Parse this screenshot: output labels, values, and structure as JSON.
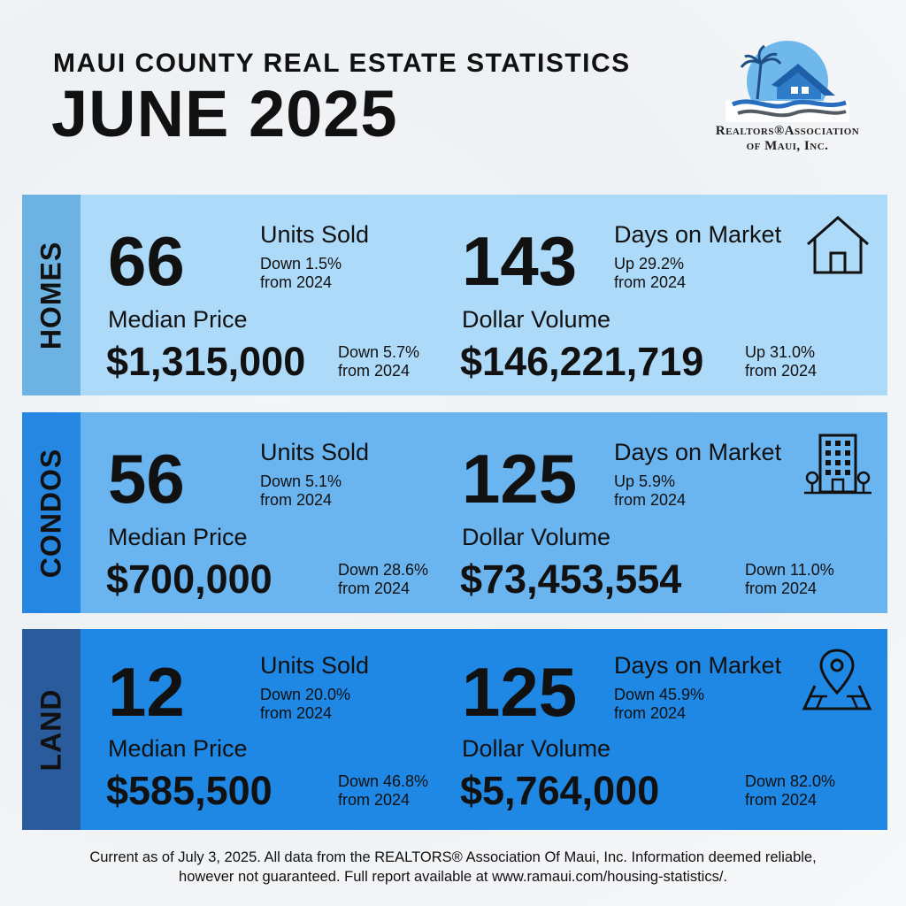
{
  "header": {
    "subtitle": "MAUI COUNTY REAL ESTATE STATISTICS",
    "title": "JUNE 2025"
  },
  "logo": {
    "line1": "Realtors®Association",
    "line2": "of Maui, Inc."
  },
  "labels": {
    "units_sold": "Units Sold",
    "days_on_market": "Days on Market",
    "median_price": "Median Price",
    "dollar_volume": "Dollar Volume",
    "from_2024": "from 2024"
  },
  "sections": [
    {
      "name": "HOMES",
      "icon": "house-icon",
      "units_sold": "66",
      "units_change": "Down 1.5%",
      "days_on_market": "143",
      "days_change": "Up 29.2%",
      "median_price": "$1,315,000",
      "median_change": "Down 5.7%",
      "dollar_volume": "$146,221,719",
      "volume_change": "Up 31.0%"
    },
    {
      "name": "CONDOS",
      "icon": "building-icon",
      "units_sold": "56",
      "units_change": "Down 5.1%",
      "days_on_market": "125",
      "days_change": "Up 5.9%",
      "median_price": "$700,000",
      "median_change": "Down 28.6%",
      "dollar_volume": "$73,453,554",
      "volume_change": "Down 11.0%"
    },
    {
      "name": "LAND",
      "icon": "map-pin-icon",
      "units_sold": "12",
      "units_change": "Down 20.0%",
      "days_on_market": "125",
      "days_change": "Down 45.9%",
      "median_price": "$585,500",
      "median_change": "Down 46.8%",
      "dollar_volume": "$5,764,000",
      "volume_change": "Down 82.0%"
    }
  ],
  "footer": {
    "line1": "Current as of July 3, 2025. All data from the REALTORS® Association Of Maui, Inc. Information deemed reliable,",
    "line2": "however not guaranteed. Full report available at www.ramaui.com/housing-statistics/."
  },
  "colors": {
    "homes_bg": "#aedaf9",
    "condos_bg": "#6ab4f0",
    "land_bg": "#1f87e4"
  }
}
